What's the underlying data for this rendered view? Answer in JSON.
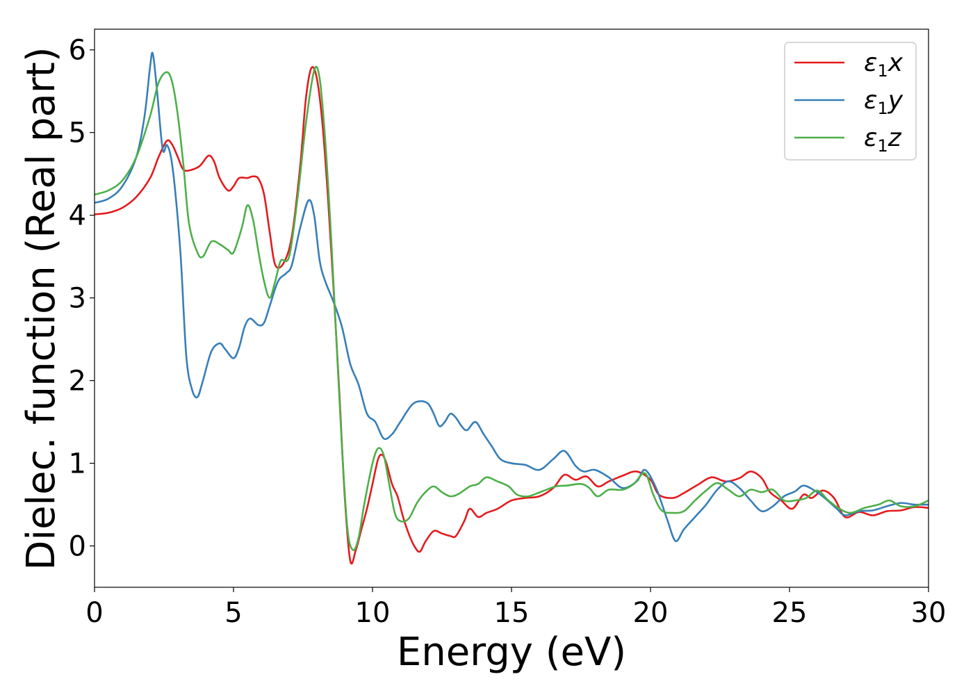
{
  "chart_data": {
    "type": "line",
    "xlabel": "Energy (eV)",
    "ylabel": "Dielec. function (Real part)",
    "xlim": [
      0,
      30
    ],
    "ylim": [
      -0.5,
      6.25
    ],
    "xticks": [
      0,
      5,
      10,
      15,
      20,
      25,
      30
    ],
    "yticks": [
      0,
      1,
      2,
      3,
      4,
      5,
      6
    ],
    "xtick_labels": [
      "0",
      "5",
      "10",
      "15",
      "20",
      "25",
      "30"
    ],
    "ytick_labels": [
      "0",
      "1",
      "2",
      "3",
      "4",
      "5",
      "6"
    ],
    "grid": false,
    "legend_position": "top-right",
    "series": [
      {
        "name": "ε₁x",
        "legend_sub": "1",
        "legend_var": "x",
        "color": "#e41a1c",
        "points": [
          [
            0,
            4.01
          ],
          [
            0.5,
            4.03
          ],
          [
            1,
            4.09
          ],
          [
            1.5,
            4.22
          ],
          [
            2,
            4.45
          ],
          [
            2.3,
            4.7
          ],
          [
            2.6,
            4.9
          ],
          [
            2.8,
            4.85
          ],
          [
            3,
            4.7
          ],
          [
            3.2,
            4.55
          ],
          [
            3.5,
            4.55
          ],
          [
            3.8,
            4.6
          ],
          [
            4.1,
            4.72
          ],
          [
            4.3,
            4.65
          ],
          [
            4.5,
            4.45
          ],
          [
            4.8,
            4.3
          ],
          [
            5.0,
            4.35
          ],
          [
            5.2,
            4.45
          ],
          [
            5.5,
            4.45
          ],
          [
            5.7,
            4.47
          ],
          [
            5.9,
            4.44
          ],
          [
            6.1,
            4.25
          ],
          [
            6.3,
            3.8
          ],
          [
            6.5,
            3.4
          ],
          [
            6.8,
            3.42
          ],
          [
            7.1,
            3.75
          ],
          [
            7.4,
            4.6
          ],
          [
            7.6,
            5.4
          ],
          [
            7.8,
            5.78
          ],
          [
            8.0,
            5.65
          ],
          [
            8.2,
            5.1
          ],
          [
            8.4,
            4.2
          ],
          [
            8.6,
            3.1
          ],
          [
            8.8,
            1.9
          ],
          [
            9.0,
            0.6
          ],
          [
            9.2,
            -0.18
          ],
          [
            9.4,
            -0.05
          ],
          [
            9.6,
            0.2
          ],
          [
            9.8,
            0.45
          ],
          [
            10.0,
            0.75
          ],
          [
            10.2,
            1.05
          ],
          [
            10.35,
            1.1
          ],
          [
            10.5,
            1.0
          ],
          [
            10.7,
            0.75
          ],
          [
            10.9,
            0.6
          ],
          [
            11.1,
            0.35
          ],
          [
            11.3,
            0.15
          ],
          [
            11.5,
            0.0
          ],
          [
            11.7,
            -0.07
          ],
          [
            11.9,
            0.05
          ],
          [
            12.2,
            0.18
          ],
          [
            12.5,
            0.15
          ],
          [
            12.8,
            0.12
          ],
          [
            13.0,
            0.12
          ],
          [
            13.3,
            0.3
          ],
          [
            13.5,
            0.45
          ],
          [
            13.8,
            0.35
          ],
          [
            14.1,
            0.4
          ],
          [
            14.5,
            0.45
          ],
          [
            15,
            0.55
          ],
          [
            15.5,
            0.58
          ],
          [
            16,
            0.6
          ],
          [
            16.5,
            0.7
          ],
          [
            16.9,
            0.86
          ],
          [
            17.3,
            0.8
          ],
          [
            17.7,
            0.84
          ],
          [
            18.1,
            0.72
          ],
          [
            18.5,
            0.78
          ],
          [
            19.0,
            0.85
          ],
          [
            19.5,
            0.9
          ],
          [
            20.0,
            0.8
          ],
          [
            20.3,
            0.62
          ],
          [
            20.8,
            0.58
          ],
          [
            21.2,
            0.64
          ],
          [
            21.7,
            0.74
          ],
          [
            22.2,
            0.83
          ],
          [
            22.7,
            0.78
          ],
          [
            23.2,
            0.82
          ],
          [
            23.6,
            0.9
          ],
          [
            24.0,
            0.82
          ],
          [
            24.3,
            0.65
          ],
          [
            24.7,
            0.55
          ],
          [
            25.1,
            0.45
          ],
          [
            25.5,
            0.62
          ],
          [
            25.8,
            0.58
          ],
          [
            26.2,
            0.67
          ],
          [
            26.6,
            0.58
          ],
          [
            27.0,
            0.35
          ],
          [
            27.5,
            0.41
          ],
          [
            28,
            0.37
          ],
          [
            28.5,
            0.42
          ],
          [
            29,
            0.43
          ],
          [
            29.5,
            0.47
          ],
          [
            30,
            0.46
          ]
        ]
      },
      {
        "name": "ε₁y",
        "legend_sub": "1",
        "legend_var": "y",
        "color": "#377eb8",
        "points": [
          [
            0,
            4.15
          ],
          [
            0.5,
            4.2
          ],
          [
            1,
            4.35
          ],
          [
            1.5,
            4.7
          ],
          [
            1.8,
            5.2
          ],
          [
            2.0,
            5.8
          ],
          [
            2.1,
            5.95
          ],
          [
            2.25,
            5.5
          ],
          [
            2.45,
            4.8
          ],
          [
            2.6,
            4.85
          ],
          [
            2.75,
            4.7
          ],
          [
            2.9,
            4.3
          ],
          [
            3.1,
            3.5
          ],
          [
            3.3,
            2.3
          ],
          [
            3.5,
            1.9
          ],
          [
            3.7,
            1.8
          ],
          [
            3.9,
            2.0
          ],
          [
            4.2,
            2.35
          ],
          [
            4.5,
            2.45
          ],
          [
            4.7,
            2.38
          ],
          [
            5.0,
            2.27
          ],
          [
            5.2,
            2.4
          ],
          [
            5.4,
            2.65
          ],
          [
            5.6,
            2.75
          ],
          [
            5.9,
            2.67
          ],
          [
            6.1,
            2.7
          ],
          [
            6.3,
            2.9
          ],
          [
            6.6,
            3.2
          ],
          [
            6.9,
            3.3
          ],
          [
            7.1,
            3.4
          ],
          [
            7.4,
            3.85
          ],
          [
            7.7,
            4.18
          ],
          [
            7.9,
            4.0
          ],
          [
            8.1,
            3.45
          ],
          [
            8.3,
            3.2
          ],
          [
            8.6,
            2.95
          ],
          [
            8.9,
            2.65
          ],
          [
            9.2,
            2.2
          ],
          [
            9.5,
            1.95
          ],
          [
            9.8,
            1.6
          ],
          [
            10.1,
            1.5
          ],
          [
            10.4,
            1.3
          ],
          [
            10.7,
            1.35
          ],
          [
            11.0,
            1.5
          ],
          [
            11.4,
            1.7
          ],
          [
            11.7,
            1.75
          ],
          [
            12.0,
            1.72
          ],
          [
            12.2,
            1.6
          ],
          [
            12.4,
            1.45
          ],
          [
            12.6,
            1.5
          ],
          [
            12.8,
            1.6
          ],
          [
            13.0,
            1.55
          ],
          [
            13.2,
            1.45
          ],
          [
            13.4,
            1.4
          ],
          [
            13.7,
            1.5
          ],
          [
            14.0,
            1.35
          ],
          [
            14.3,
            1.2
          ],
          [
            14.6,
            1.05
          ],
          [
            15.0,
            1.0
          ],
          [
            15.5,
            0.98
          ],
          [
            16.0,
            0.92
          ],
          [
            16.5,
            1.05
          ],
          [
            16.9,
            1.15
          ],
          [
            17.3,
            0.97
          ],
          [
            17.6,
            0.9
          ],
          [
            18.0,
            0.92
          ],
          [
            18.5,
            0.83
          ],
          [
            19.0,
            0.7
          ],
          [
            19.5,
            0.78
          ],
          [
            19.8,
            0.92
          ],
          [
            20.2,
            0.7
          ],
          [
            20.6,
            0.32
          ],
          [
            20.9,
            0.06
          ],
          [
            21.2,
            0.2
          ],
          [
            21.6,
            0.35
          ],
          [
            22.0,
            0.5
          ],
          [
            22.4,
            0.68
          ],
          [
            22.8,
            0.78
          ],
          [
            23.2,
            0.7
          ],
          [
            23.6,
            0.55
          ],
          [
            24.0,
            0.42
          ],
          [
            24.4,
            0.48
          ],
          [
            24.8,
            0.6
          ],
          [
            25.2,
            0.66
          ],
          [
            25.5,
            0.73
          ],
          [
            25.9,
            0.67
          ],
          [
            26.3,
            0.57
          ],
          [
            26.7,
            0.45
          ],
          [
            27.0,
            0.37
          ],
          [
            27.5,
            0.42
          ],
          [
            28.0,
            0.43
          ],
          [
            28.5,
            0.48
          ],
          [
            29.0,
            0.52
          ],
          [
            29.5,
            0.5
          ],
          [
            30,
            0.5
          ]
        ]
      },
      {
        "name": "ε₁z",
        "legend_sub": "1",
        "legend_var": "z",
        "color": "#4daf4a",
        "points": [
          [
            0,
            4.25
          ],
          [
            0.5,
            4.3
          ],
          [
            1,
            4.42
          ],
          [
            1.5,
            4.7
          ],
          [
            2.0,
            5.2
          ],
          [
            2.3,
            5.6
          ],
          [
            2.6,
            5.73
          ],
          [
            2.8,
            5.6
          ],
          [
            3.0,
            5.2
          ],
          [
            3.2,
            4.6
          ],
          [
            3.4,
            3.9
          ],
          [
            3.7,
            3.55
          ],
          [
            3.9,
            3.5
          ],
          [
            4.2,
            3.68
          ],
          [
            4.5,
            3.65
          ],
          [
            4.8,
            3.58
          ],
          [
            5.0,
            3.55
          ],
          [
            5.3,
            3.85
          ],
          [
            5.5,
            4.12
          ],
          [
            5.7,
            3.95
          ],
          [
            5.9,
            3.55
          ],
          [
            6.1,
            3.2
          ],
          [
            6.3,
            3.0
          ],
          [
            6.5,
            3.2
          ],
          [
            6.7,
            3.45
          ],
          [
            7.0,
            3.5
          ],
          [
            7.3,
            4.2
          ],
          [
            7.6,
            5.1
          ],
          [
            7.9,
            5.75
          ],
          [
            8.1,
            5.65
          ],
          [
            8.3,
            4.9
          ],
          [
            8.5,
            3.8
          ],
          [
            8.7,
            2.5
          ],
          [
            8.9,
            1.2
          ],
          [
            9.1,
            0.2
          ],
          [
            9.3,
            -0.05
          ],
          [
            9.5,
            0.1
          ],
          [
            9.7,
            0.5
          ],
          [
            10.0,
            1.0
          ],
          [
            10.2,
            1.18
          ],
          [
            10.4,
            1.1
          ],
          [
            10.6,
            0.75
          ],
          [
            10.8,
            0.4
          ],
          [
            11.0,
            0.3
          ],
          [
            11.3,
            0.33
          ],
          [
            11.6,
            0.52
          ],
          [
            11.9,
            0.65
          ],
          [
            12.2,
            0.72
          ],
          [
            12.5,
            0.65
          ],
          [
            12.8,
            0.6
          ],
          [
            13.1,
            0.63
          ],
          [
            13.5,
            0.72
          ],
          [
            13.8,
            0.75
          ],
          [
            14.1,
            0.83
          ],
          [
            14.5,
            0.78
          ],
          [
            14.9,
            0.72
          ],
          [
            15.2,
            0.62
          ],
          [
            15.6,
            0.6
          ],
          [
            16.1,
            0.66
          ],
          [
            16.6,
            0.72
          ],
          [
            17.0,
            0.73
          ],
          [
            17.5,
            0.75
          ],
          [
            17.8,
            0.7
          ],
          [
            18.1,
            0.6
          ],
          [
            18.5,
            0.68
          ],
          [
            19.0,
            0.68
          ],
          [
            19.4,
            0.75
          ],
          [
            19.8,
            0.88
          ],
          [
            20.1,
            0.62
          ],
          [
            20.4,
            0.43
          ],
          [
            20.8,
            0.4
          ],
          [
            21.2,
            0.42
          ],
          [
            21.6,
            0.55
          ],
          [
            22.0,
            0.67
          ],
          [
            22.4,
            0.76
          ],
          [
            22.8,
            0.68
          ],
          [
            23.2,
            0.6
          ],
          [
            23.6,
            0.68
          ],
          [
            24.0,
            0.65
          ],
          [
            24.4,
            0.68
          ],
          [
            24.8,
            0.55
          ],
          [
            25.2,
            0.55
          ],
          [
            25.6,
            0.58
          ],
          [
            26.0,
            0.67
          ],
          [
            26.4,
            0.55
          ],
          [
            26.8,
            0.45
          ],
          [
            27.2,
            0.4
          ],
          [
            27.7,
            0.46
          ],
          [
            28.2,
            0.5
          ],
          [
            28.6,
            0.55
          ],
          [
            29.0,
            0.48
          ],
          [
            29.5,
            0.48
          ],
          [
            30,
            0.55
          ]
        ]
      }
    ]
  }
}
